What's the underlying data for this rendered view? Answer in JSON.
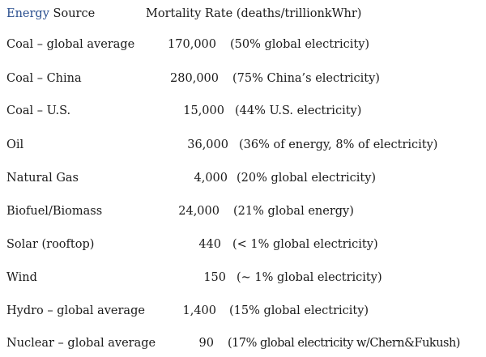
{
  "header": {
    "energy_word": "Energy",
    "source_word": " Source",
    "rate_label": "Mortality Rate (deaths/trillionkWhr)"
  },
  "colors": {
    "header_accent": "#2a4f8f",
    "text": "#1a1a1a",
    "background": "#ffffff"
  },
  "rows": [
    {
      "source": "Coal – global average",
      "rate": "170,000",
      "share": "(50% global electricity)"
    },
    {
      "source": "Coal – China",
      "rate": "280,000",
      "share": "(75% China’s electricity)"
    },
    {
      "source": "Coal – U.S.",
      "rate": "15,000",
      "share": "(44% U.S. electricity)"
    },
    {
      "source": "Oil",
      "rate": "36,000",
      "share": "(36% of energy, 8% of electricity)"
    },
    {
      "source": "Natural Gas",
      "rate": "4,000",
      "share": "(20% global electricity)"
    },
    {
      "source": "Biofuel/Biomass",
      "rate": "24,000",
      "share": "(21% global energy)"
    },
    {
      "source": "Solar (rooftop)",
      "rate": "440",
      "share": "(< 1% global electricity)"
    },
    {
      "source": "Wind",
      "rate": "150",
      "share": "(~ 1% global electricity)"
    },
    {
      "source": "Hydro – global average",
      "rate": "1,400",
      "share": "(15% global electricity)"
    },
    {
      "source": "Nuclear – global average",
      "rate": "90",
      "share": "(17%  global electricity w/Chern&Fukush)"
    }
  ]
}
